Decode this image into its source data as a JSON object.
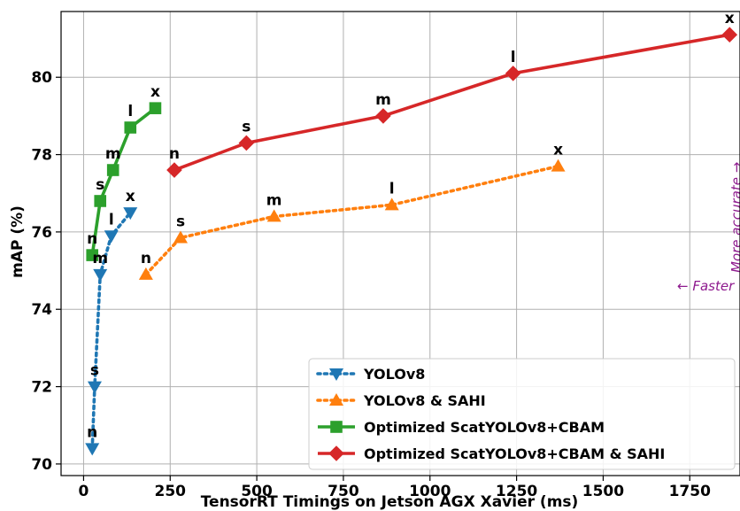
{
  "chart_data": {
    "type": "line",
    "xlabel": "TensorRT Timings on Jetson AGX Xavier (ms)",
    "ylabel": "mAP (%)",
    "xlim": [
      -65,
      1895
    ],
    "ylim": [
      69.7,
      81.7
    ],
    "xticks": [
      0,
      250,
      500,
      750,
      1000,
      1250,
      1500,
      1750
    ],
    "yticks": [
      70,
      72,
      74,
      76,
      78,
      80
    ],
    "grid": true,
    "legend_position": "lower-right",
    "series": [
      {
        "name": "YOLOv8",
        "color": "#1f77b4",
        "linestyle": "dotted",
        "marker": "triangle-down",
        "points": [
          {
            "label": "n",
            "x": 25,
            "y": 70.4
          },
          {
            "label": "s",
            "x": 32,
            "y": 72.0
          },
          {
            "label": "m",
            "x": 48,
            "y": 74.9
          },
          {
            "label": "l",
            "x": 80,
            "y": 75.9
          },
          {
            "label": "x",
            "x": 135,
            "y": 76.5
          }
        ]
      },
      {
        "name": "YOLOv8 & SAHI",
        "color": "#ff7f0e",
        "linestyle": "dotted",
        "marker": "triangle-up",
        "points": [
          {
            "label": "n",
            "x": 180,
            "y": 74.9
          },
          {
            "label": "s",
            "x": 280,
            "y": 75.85
          },
          {
            "label": "m",
            "x": 550,
            "y": 76.4
          },
          {
            "label": "l",
            "x": 890,
            "y": 76.7
          },
          {
            "label": "x",
            "x": 1370,
            "y": 77.7
          }
        ]
      },
      {
        "name": "Optimized ScatYOLOv8+CBAM",
        "color": "#2ca02c",
        "linestyle": "solid",
        "marker": "square",
        "points": [
          {
            "label": "n",
            "x": 25,
            "y": 75.4
          },
          {
            "label": "s",
            "x": 48,
            "y": 76.8
          },
          {
            "label": "m",
            "x": 85,
            "y": 77.6
          },
          {
            "label": "l",
            "x": 135,
            "y": 78.7
          },
          {
            "label": "x",
            "x": 207,
            "y": 79.2
          }
        ]
      },
      {
        "name": "Optimized ScatYOLOv8+CBAM & SAHI",
        "color": "#d62728",
        "linestyle": "solid",
        "marker": "diamond",
        "points": [
          {
            "label": "n",
            "x": 262,
            "y": 77.6
          },
          {
            "label": "s",
            "x": 470,
            "y": 78.3
          },
          {
            "label": "m",
            "x": 865,
            "y": 79.0
          },
          {
            "label": "l",
            "x": 1240,
            "y": 80.1
          },
          {
            "label": "x",
            "x": 1865,
            "y": 81.1
          }
        ]
      }
    ],
    "annotations": {
      "faster": "← Faster",
      "more_accurate": "More accurate →"
    }
  }
}
